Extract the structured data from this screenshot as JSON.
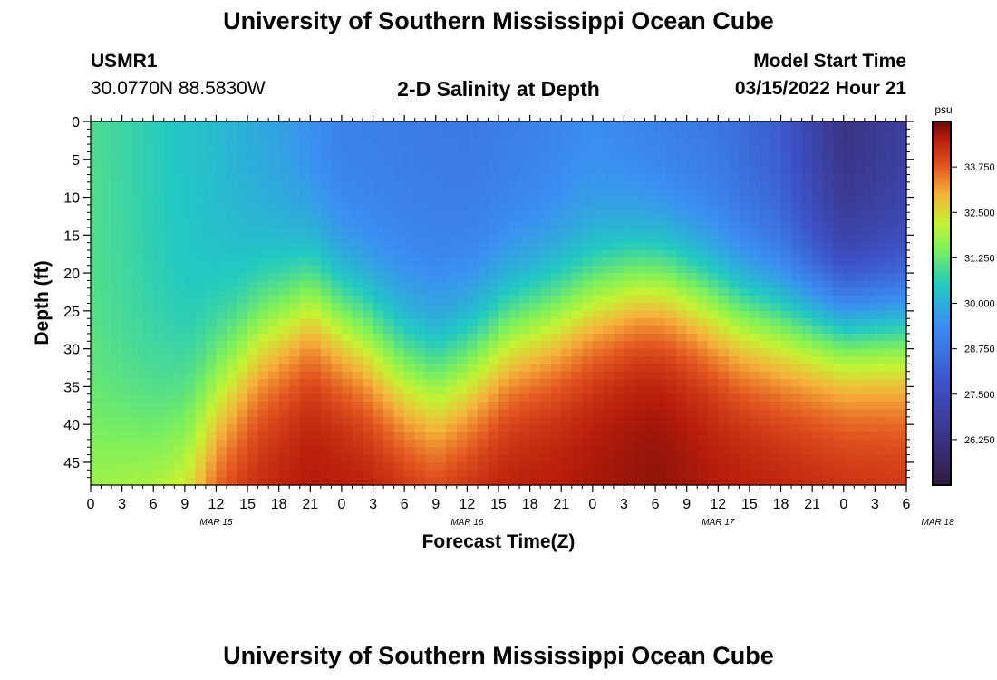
{
  "header": {
    "title": "University of Southern Mississippi Ocean Cube",
    "station": "USMR1",
    "coords": "30.0770N  88.5830W",
    "plot_title": "2-D Salinity at Depth",
    "model_label": "Model Start Time",
    "model_time": "03/15/2022 Hour 21"
  },
  "footer": {
    "title": "University of Southern Mississippi Ocean Cube"
  },
  "chart_data": {
    "type": "heatmap",
    "title": "2-D Salinity at Depth",
    "xlabel": "Forecast Time(Z)",
    "ylabel": "Depth (ft)",
    "x_tick_labels": [
      "0",
      "3",
      "6",
      "9",
      "12",
      "15",
      "18",
      "21",
      "0",
      "3",
      "6",
      "9",
      "12",
      "15",
      "18",
      "21",
      "0",
      "3",
      "6",
      "9",
      "12",
      "15",
      "18",
      "21",
      "0",
      "3",
      "6"
    ],
    "date_labels": [
      {
        "label": "MAR 15",
        "hour": 12
      },
      {
        "label": "MAR 16",
        "hour": 36
      },
      {
        "label": "MAR 17",
        "hour": 60
      },
      {
        "label": "MAR 18",
        "hour": 81
      }
    ],
    "x_range_hours": [
      0,
      78
    ],
    "y_ticks": [
      0,
      5,
      10,
      15,
      20,
      25,
      30,
      35,
      40,
      45
    ],
    "y_range": [
      0,
      48
    ],
    "colorbar": {
      "unit": "psu",
      "range": [
        25.0,
        35.0
      ],
      "ticks": [
        "33.750",
        "32.500",
        "31.250",
        "30.000",
        "28.750",
        "27.500",
        "26.250"
      ]
    },
    "surface_salinity_psu": {
      "hours": [
        0,
        6,
        12,
        18,
        24,
        30,
        36,
        42,
        48,
        54,
        60,
        66,
        72,
        78
      ],
      "values": [
        31.0,
        30.6,
        30.2,
        29.7,
        29.0,
        28.9,
        28.8,
        29.0,
        29.3,
        29.0,
        28.7,
        28.0,
        26.2,
        26.8
      ]
    },
    "halocline_depth_ft": {
      "hours": [
        0,
        6,
        9,
        12,
        16,
        21,
        26,
        30,
        33,
        36,
        40,
        44,
        48,
        52,
        55,
        58,
        62,
        66,
        72,
        78
      ],
      "values": [
        48,
        47,
        44,
        37,
        29,
        24,
        28,
        33,
        35,
        32.5,
        28,
        26,
        23.5,
        21.5,
        21.5,
        23,
        25.5,
        26.5,
        27,
        27
      ]
    },
    "bottom_salinity_psu": {
      "hours": [
        0,
        9,
        12,
        21,
        30,
        36,
        45,
        54,
        60,
        66,
        72,
        78
      ],
      "values": [
        32.6,
        33.4,
        34.3,
        34.6,
        34.6,
        34.6,
        34.6,
        34.8,
        34.6,
        34.5,
        34.4,
        34.3
      ]
    }
  }
}
